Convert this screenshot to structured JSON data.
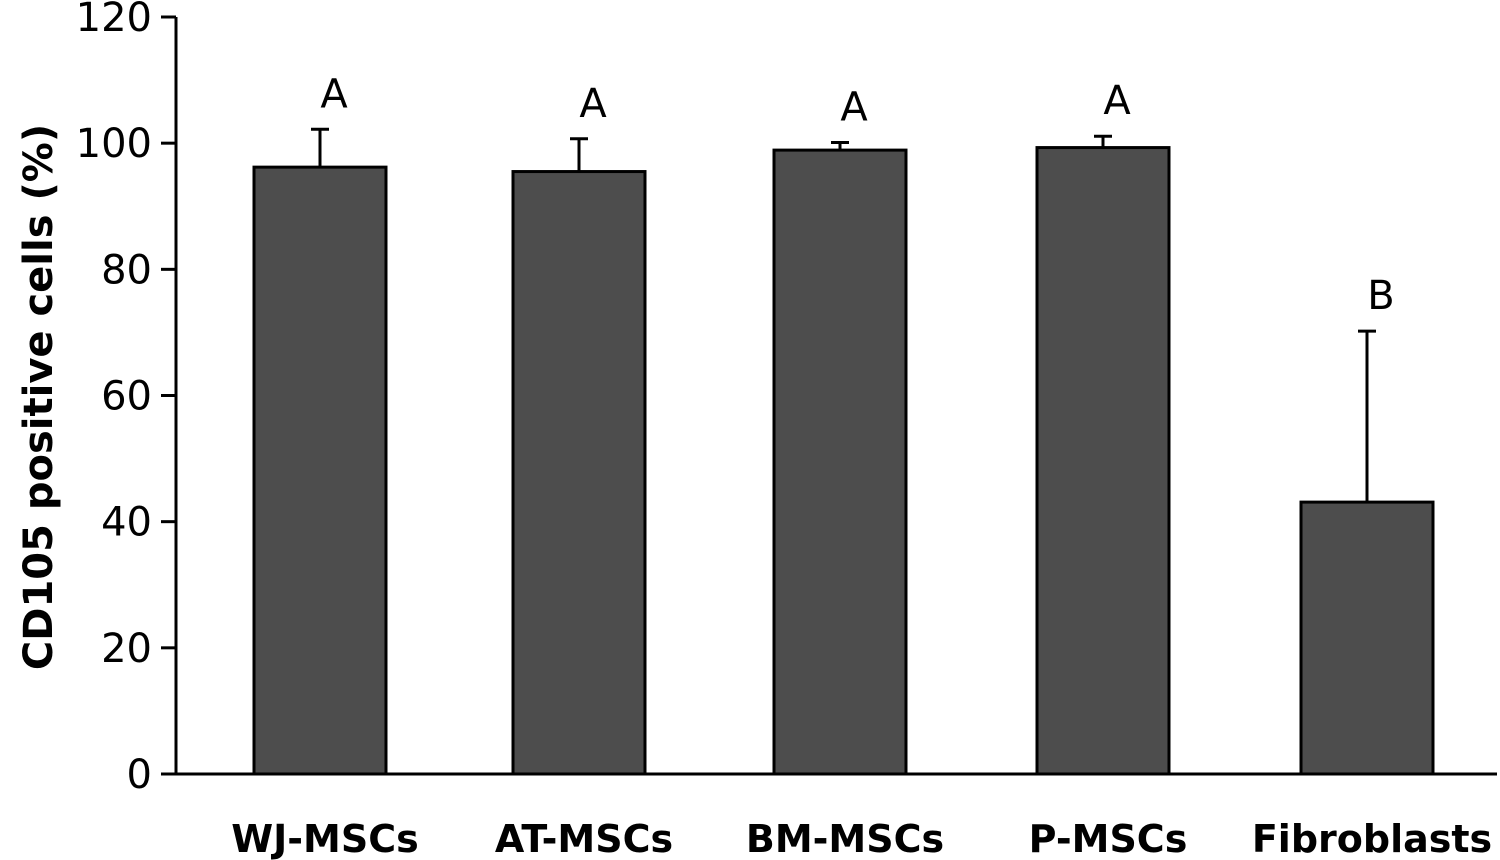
{
  "chart_data": {
    "type": "bar",
    "title": "",
    "xlabel": "",
    "ylabel": "CD105 positive cells (%)",
    "ylim": [
      0,
      120
    ],
    "yticks": [
      0,
      20,
      40,
      60,
      80,
      100,
      120
    ],
    "categories": [
      "WJ-MSCs",
      "AT-MSCs",
      "BM-MSCs",
      "P-MSCs",
      "Fibroblasts"
    ],
    "series": [
      {
        "values": [
          96.2,
          95.5,
          98.9,
          99.3,
          43.1
        ],
        "error_upper": [
          6.0,
          5.2,
          1.2,
          1.8,
          27.1
        ],
        "significance": [
          "A",
          "A",
          "A",
          "A",
          "B"
        ]
      }
    ],
    "bar_color": "#4d4d4d",
    "grid": false
  }
}
